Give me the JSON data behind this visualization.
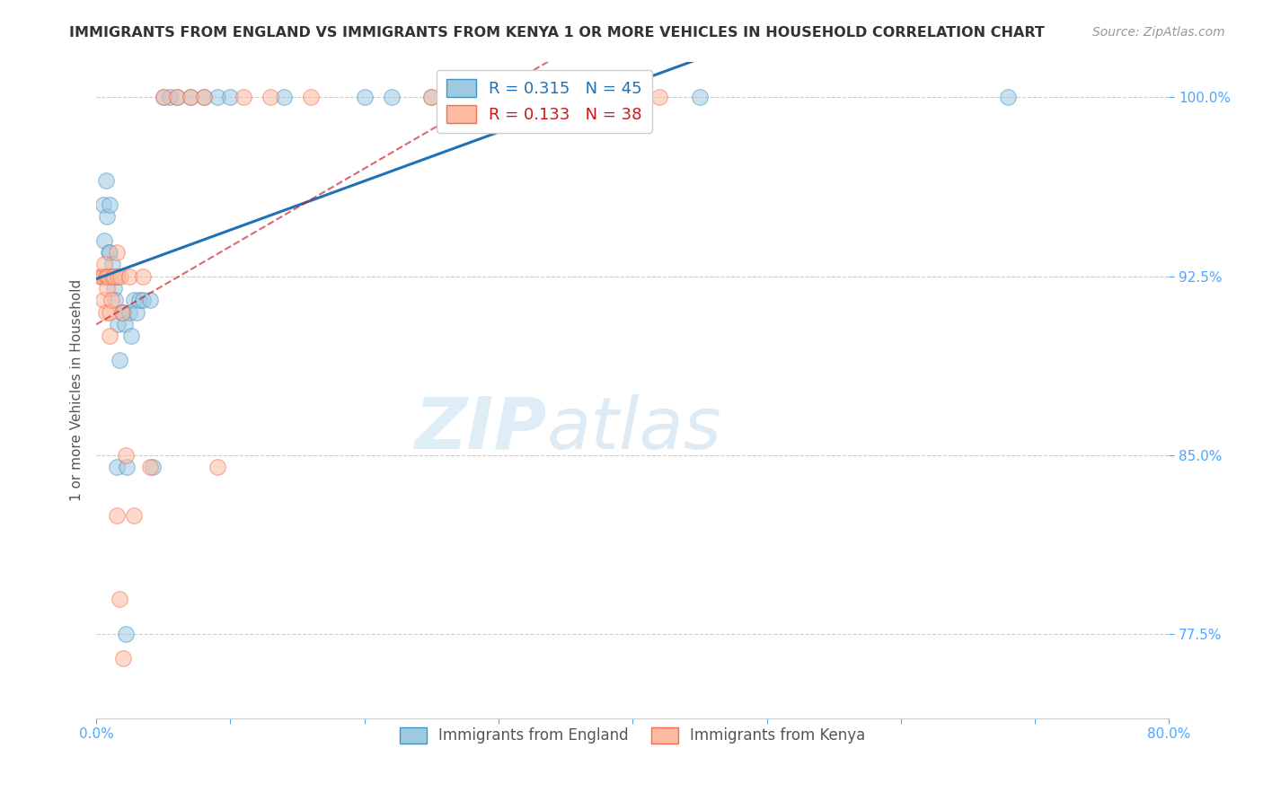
{
  "title": "IMMIGRANTS FROM ENGLAND VS IMMIGRANTS FROM KENYA 1 OR MORE VEHICLES IN HOUSEHOLD CORRELATION CHART",
  "source": "Source: ZipAtlas.com",
  "ylabel": "1 or more Vehicles in Household",
  "xlim": [
    0.0,
    80.0
  ],
  "ylim": [
    74.0,
    101.5
  ],
  "yticks": [
    77.5,
    85.0,
    92.5,
    100.0
  ],
  "xtick_show": [
    0.0,
    80.0
  ],
  "xtick_labels_show": [
    "0.0%",
    "80.0%"
  ],
  "ytick_labels": [
    "77.5%",
    "85.0%",
    "92.5%",
    "100.0%"
  ],
  "legend_england": "Immigrants from England",
  "legend_kenya": "Immigrants from Kenya",
  "R_england": 0.315,
  "N_england": 45,
  "R_kenya": 0.133,
  "N_kenya": 38,
  "england_color": "#9ecae1",
  "kenya_color": "#fcbba1",
  "england_edge_color": "#4292c6",
  "kenya_edge_color": "#fb6a4a",
  "england_line_color": "#2171b5",
  "kenya_line_color": "#cb181d",
  "watermark_zip": "ZIP",
  "watermark_atlas": "atlas",
  "title_color": "#333333",
  "axis_color": "#4da6ff",
  "england_x": [
    0.5,
    0.6,
    0.7,
    0.8,
    0.9,
    1.0,
    1.0,
    1.1,
    1.2,
    1.3,
    1.4,
    1.5,
    1.5,
    1.6,
    1.7,
    1.9,
    2.0,
    2.1,
    2.2,
    2.3,
    2.5,
    2.6,
    2.8,
    3.0,
    3.2,
    3.5,
    4.0,
    4.2,
    5.0,
    5.5,
    6.0,
    7.0,
    8.0,
    9.0,
    10.0,
    14.0,
    20.0,
    22.0,
    25.0,
    28.0,
    30.0,
    35.0,
    40.0,
    45.0,
    68.0
  ],
  "england_y": [
    95.5,
    94.0,
    96.5,
    95.0,
    93.5,
    95.5,
    93.5,
    92.5,
    93.0,
    92.0,
    91.5,
    84.5,
    92.5,
    90.5,
    89.0,
    91.0,
    91.0,
    90.5,
    77.5,
    84.5,
    91.0,
    90.0,
    91.5,
    91.0,
    91.5,
    91.5,
    91.5,
    84.5,
    100.0,
    100.0,
    100.0,
    100.0,
    100.0,
    100.0,
    100.0,
    100.0,
    100.0,
    100.0,
    100.0,
    100.0,
    100.0,
    100.0,
    100.0,
    100.0,
    100.0
  ],
  "kenya_x": [
    0.3,
    0.4,
    0.5,
    0.5,
    0.6,
    0.7,
    0.7,
    0.8,
    0.8,
    0.9,
    1.0,
    1.0,
    1.1,
    1.2,
    1.3,
    1.5,
    1.5,
    1.6,
    1.7,
    1.8,
    1.9,
    2.0,
    2.2,
    2.5,
    2.8,
    3.5,
    4.0,
    5.0,
    6.0,
    7.0,
    8.0,
    9.0,
    11.0,
    13.0,
    16.0,
    25.0,
    35.0,
    42.0
  ],
  "kenya_y": [
    92.5,
    92.5,
    92.5,
    91.5,
    93.0,
    92.5,
    91.0,
    92.5,
    92.0,
    92.5,
    91.0,
    90.0,
    91.5,
    92.5,
    92.5,
    82.5,
    93.5,
    92.5,
    79.0,
    92.5,
    91.0,
    76.5,
    85.0,
    92.5,
    82.5,
    92.5,
    84.5,
    100.0,
    100.0,
    100.0,
    100.0,
    84.5,
    100.0,
    100.0,
    100.0,
    100.0,
    100.0,
    100.0
  ]
}
